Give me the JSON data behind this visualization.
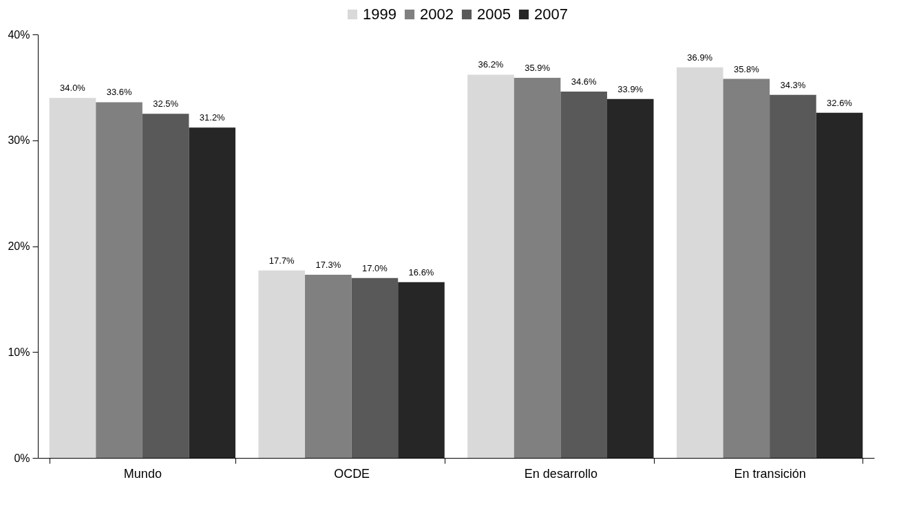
{
  "chart_data": {
    "type": "bar",
    "categories": [
      "Mundo",
      "OCDE",
      "En desarrollo",
      "En transición"
    ],
    "series": [
      {
        "name": "1999",
        "color": "#d9d9d9",
        "values": [
          34.0,
          17.7,
          36.2,
          36.9
        ],
        "value_labels": [
          "34.0%",
          "17.7%",
          "36.2%",
          "36.9%"
        ]
      },
      {
        "name": "2002",
        "color": "#808080",
        "values": [
          33.6,
          17.3,
          35.9,
          35.8
        ],
        "value_labels": [
          "33.6%",
          "17.3%",
          "35.9%",
          "35.8%"
        ]
      },
      {
        "name": "2005",
        "color": "#595959",
        "values": [
          32.5,
          17.0,
          34.6,
          34.3
        ],
        "value_labels": [
          "32.5%",
          "17.0%",
          "34.6%",
          "34.3%"
        ]
      },
      {
        "name": "2007",
        "color": "#262626",
        "values": [
          31.2,
          16.6,
          33.9,
          32.6
        ],
        "value_labels": [
          "31.2%",
          "16.6%",
          "33.9%",
          "32.6%"
        ]
      }
    ],
    "ylim": [
      0,
      40
    ],
    "yticks": [
      {
        "value": 0,
        "label": "0%"
      },
      {
        "value": 10,
        "label": "10%"
      },
      {
        "value": 20,
        "label": "20%"
      },
      {
        "value": 30,
        "label": "30%"
      },
      {
        "value": 40,
        "label": "40%"
      }
    ],
    "grid": false,
    "legend": "top"
  }
}
